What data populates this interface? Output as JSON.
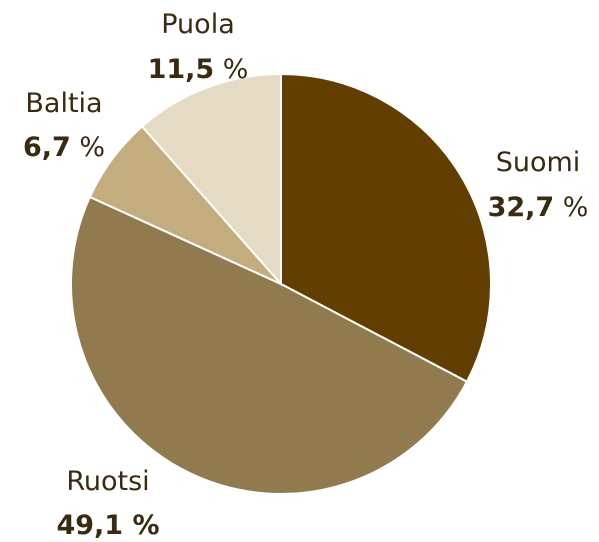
{
  "chart_data": {
    "type": "pie",
    "title": "",
    "start_angle_deg": 0,
    "direction": "clockwise",
    "slices": [
      {
        "label": "Suomi",
        "value": 32.7,
        "value_text": "32,7",
        "unit_text": "%",
        "unit_bold": false,
        "color": "#623f00"
      },
      {
        "label": "Ruotsi",
        "value": 49.1,
        "value_text": "49,1",
        "unit_text": "%",
        "unit_bold": true,
        "color": "#907a4e"
      },
      {
        "label": "Baltia",
        "value": 6.7,
        "value_text": "6,7",
        "unit_text": "%",
        "unit_bold": false,
        "color": "#c3ad7e"
      },
      {
        "label": "Puola",
        "value": 11.5,
        "value_text": "11,5",
        "unit_text": "%",
        "unit_bold": false,
        "color": "#e5dac3"
      }
    ]
  }
}
